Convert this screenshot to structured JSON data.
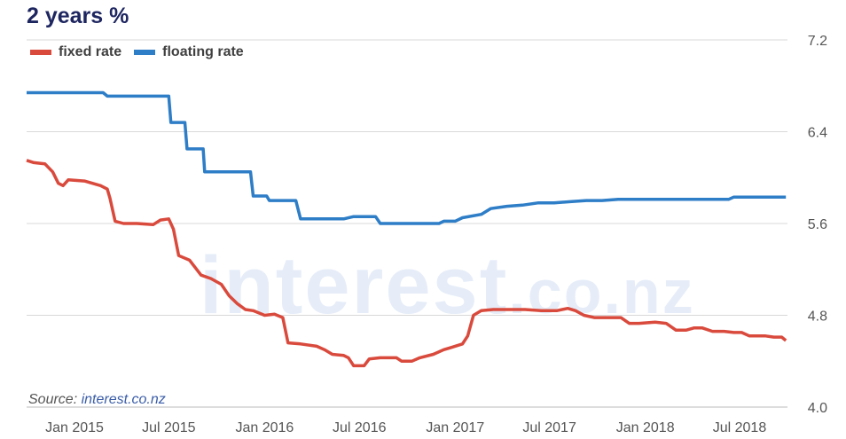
{
  "chart_data": {
    "type": "line",
    "title": "2 years %",
    "xlabel": "",
    "ylabel": "",
    "ylim": [
      4.0,
      7.2
    ],
    "yticks": [
      "7.2",
      "6.4",
      "5.6",
      "4.8",
      "4.0"
    ],
    "xticks": [
      "Jan 2015",
      "Jul 2015",
      "Jan 2016",
      "Jul 2016",
      "Jan 2017",
      "Jul 2017",
      "Jan 2018",
      "Jul 2018"
    ],
    "grid": true,
    "legend_position": "top-left",
    "source_prefix": "Source:",
    "source_link": "interest.co.nz",
    "watermark": "interest",
    "watermark_suffix": ".co.nz",
    "series": [
      {
        "name": "fixed rate",
        "color": "#d94a3d",
        "points": [
          [
            "2014-10-01",
            6.15
          ],
          [
            "2014-10-15",
            6.13
          ],
          [
            "2014-11-05",
            6.12
          ],
          [
            "2014-11-20",
            6.05
          ],
          [
            "2014-12-01",
            5.95
          ],
          [
            "2014-12-10",
            5.93
          ],
          [
            "2014-12-20",
            5.98
          ],
          [
            "2015-01-20",
            5.97
          ],
          [
            "2015-02-20",
            5.93
          ],
          [
            "2015-03-05",
            5.9
          ],
          [
            "2015-03-10",
            5.82
          ],
          [
            "2015-03-20",
            5.62
          ],
          [
            "2015-04-05",
            5.6
          ],
          [
            "2015-05-01",
            5.6
          ],
          [
            "2015-06-01",
            5.59
          ],
          [
            "2015-06-15",
            5.63
          ],
          [
            "2015-07-01",
            5.64
          ],
          [
            "2015-07-10",
            5.55
          ],
          [
            "2015-07-20",
            5.32
          ],
          [
            "2015-08-10",
            5.28
          ],
          [
            "2015-09-01",
            5.15
          ],
          [
            "2015-09-20",
            5.12
          ],
          [
            "2015-10-10",
            5.07
          ],
          [
            "2015-10-25",
            4.97
          ],
          [
            "2015-11-10",
            4.9
          ],
          [
            "2015-11-25",
            4.85
          ],
          [
            "2015-12-10",
            4.84
          ],
          [
            "2016-01-01",
            4.8
          ],
          [
            "2016-01-20",
            4.81
          ],
          [
            "2016-02-05",
            4.78
          ],
          [
            "2016-02-15",
            4.56
          ],
          [
            "2016-03-10",
            4.55
          ],
          [
            "2016-04-10",
            4.53
          ],
          [
            "2016-04-25",
            4.5
          ],
          [
            "2016-05-10",
            4.46
          ],
          [
            "2016-06-01",
            4.45
          ],
          [
            "2016-06-10",
            4.43
          ],
          [
            "2016-06-20",
            4.36
          ],
          [
            "2016-07-10",
            4.36
          ],
          [
            "2016-07-20",
            4.42
          ],
          [
            "2016-08-10",
            4.43
          ],
          [
            "2016-09-10",
            4.43
          ],
          [
            "2016-09-20",
            4.4
          ],
          [
            "2016-10-10",
            4.4
          ],
          [
            "2016-10-25",
            4.43
          ],
          [
            "2016-11-20",
            4.46
          ],
          [
            "2016-12-10",
            4.5
          ],
          [
            "2016-12-25",
            4.52
          ],
          [
            "2017-01-15",
            4.55
          ],
          [
            "2017-01-25",
            4.62
          ],
          [
            "2017-02-05",
            4.8
          ],
          [
            "2017-02-20",
            4.84
          ],
          [
            "2017-03-15",
            4.85
          ],
          [
            "2017-04-15",
            4.85
          ],
          [
            "2017-05-15",
            4.85
          ],
          [
            "2017-06-15",
            4.84
          ],
          [
            "2017-07-15",
            4.84
          ],
          [
            "2017-08-05",
            4.86
          ],
          [
            "2017-08-20",
            4.84
          ],
          [
            "2017-09-05",
            4.8
          ],
          [
            "2017-09-25",
            4.78
          ],
          [
            "2017-10-15",
            4.78
          ],
          [
            "2017-11-15",
            4.78
          ],
          [
            "2017-12-01",
            4.73
          ],
          [
            "2017-12-20",
            4.73
          ],
          [
            "2018-01-20",
            4.74
          ],
          [
            "2018-02-10",
            4.73
          ],
          [
            "2018-03-01",
            4.67
          ],
          [
            "2018-03-20",
            4.67
          ],
          [
            "2018-04-05",
            4.69
          ],
          [
            "2018-04-20",
            4.69
          ],
          [
            "2018-05-10",
            4.66
          ],
          [
            "2018-06-01",
            4.66
          ],
          [
            "2018-06-20",
            4.65
          ],
          [
            "2018-07-05",
            4.65
          ],
          [
            "2018-07-20",
            4.62
          ],
          [
            "2018-08-20",
            4.62
          ],
          [
            "2018-09-05",
            4.61
          ],
          [
            "2018-09-20",
            4.61
          ],
          [
            "2018-09-28",
            4.58
          ]
        ]
      },
      {
        "name": "floating rate",
        "color": "#2e7dc7",
        "points": [
          [
            "2014-10-01",
            6.74
          ],
          [
            "2015-02-25",
            6.74
          ],
          [
            "2015-03-05",
            6.71
          ],
          [
            "2015-04-15",
            6.71
          ],
          [
            "2015-05-01",
            6.71
          ],
          [
            "2015-06-01",
            6.71
          ],
          [
            "2015-07-01",
            6.71
          ],
          [
            "2015-07-05",
            6.48
          ],
          [
            "2015-08-01",
            6.48
          ],
          [
            "2015-08-05",
            6.25
          ],
          [
            "2015-09-05",
            6.25
          ],
          [
            "2015-09-08",
            6.05
          ],
          [
            "2015-12-05",
            6.05
          ],
          [
            "2015-12-10",
            5.84
          ],
          [
            "2016-01-05",
            5.84
          ],
          [
            "2016-01-10",
            5.8
          ],
          [
            "2016-03-01",
            5.8
          ],
          [
            "2016-03-10",
            5.64
          ],
          [
            "2016-05-01",
            5.64
          ],
          [
            "2016-06-01",
            5.64
          ],
          [
            "2016-06-20",
            5.66
          ],
          [
            "2016-08-01",
            5.66
          ],
          [
            "2016-08-10",
            5.6
          ],
          [
            "2016-12-01",
            5.6
          ],
          [
            "2016-12-10",
            5.62
          ],
          [
            "2017-01-01",
            5.62
          ],
          [
            "2017-01-15",
            5.65
          ],
          [
            "2017-02-20",
            5.68
          ],
          [
            "2017-03-10",
            5.73
          ],
          [
            "2017-04-10",
            5.75
          ],
          [
            "2017-05-10",
            5.76
          ],
          [
            "2017-06-10",
            5.78
          ],
          [
            "2017-07-10",
            5.78
          ],
          [
            "2017-08-10",
            5.79
          ],
          [
            "2017-09-10",
            5.8
          ],
          [
            "2017-10-10",
            5.8
          ],
          [
            "2017-11-10",
            5.81
          ],
          [
            "2018-01-10",
            5.81
          ],
          [
            "2018-03-10",
            5.81
          ],
          [
            "2018-05-10",
            5.81
          ],
          [
            "2018-06-10",
            5.81
          ],
          [
            "2018-06-20",
            5.83
          ],
          [
            "2018-08-10",
            5.83
          ],
          [
            "2018-09-28",
            5.83
          ]
        ]
      }
    ]
  }
}
